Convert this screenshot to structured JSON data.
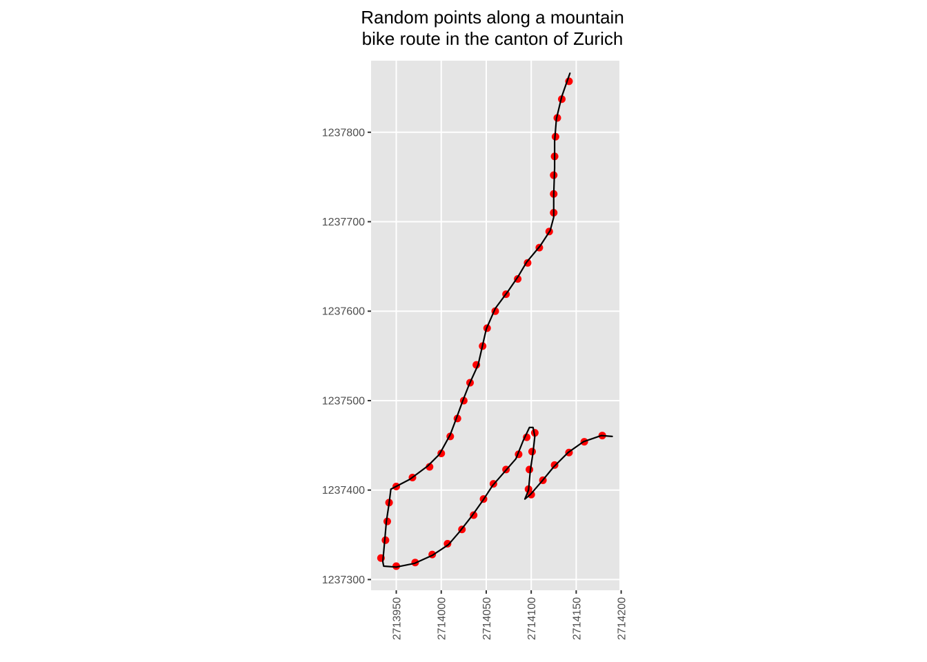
{
  "chart_data": {
    "type": "scatter",
    "title_lines": [
      "Random points along a mountain",
      "bike route in the canton of Zurich"
    ],
    "xlabel": "",
    "ylabel": "",
    "xlim": [
      2713922,
      2714198
    ],
    "ylim": [
      1237288,
      1237880
    ],
    "x_ticks": [
      2713950,
      2714000,
      2714050,
      2714100,
      2714150,
      2714200
    ],
    "x_tick_labels": [
      "2713950",
      "2714000",
      "2714050",
      "2714100",
      "2714150",
      "2714200"
    ],
    "y_ticks": [
      1237300,
      1237400,
      1237500,
      1237600,
      1237700,
      1237800
    ],
    "y_tick_labels": [
      "1237300",
      "1237400",
      "1237500",
      "1237600",
      "1237700",
      "1237800"
    ],
    "grid": true,
    "panel_background": "#e5e5e5",
    "grid_color": "#ffffff",
    "route_color": "#000000",
    "point_color": "#ff0000",
    "route": [
      [
        2714143,
        1237866
      ],
      [
        2714134,
        1237840
      ],
      [
        2714128,
        1237815
      ],
      [
        2714126,
        1237790
      ],
      [
        2714126,
        1237760
      ],
      [
        2714125,
        1237730
      ],
      [
        2714125,
        1237705
      ],
      [
        2714121,
        1237690
      ],
      [
        2714110,
        1237673
      ],
      [
        2714095,
        1237655
      ],
      [
        2714085,
        1237638
      ],
      [
        2714074,
        1237622
      ],
      [
        2714060,
        1237603
      ],
      [
        2714050,
        1237580
      ],
      [
        2714041,
        1237540
      ],
      [
        2714031,
        1237518
      ],
      [
        2714024,
        1237500
      ],
      [
        2714016,
        1237478
      ],
      [
        2714010,
        1237462
      ],
      [
        2713998,
        1237440
      ],
      [
        2713985,
        1237427
      ],
      [
        2713965,
        1237412
      ],
      [
        2713944,
        1237401
      ],
      [
        2713942,
        1237385
      ],
      [
        2713939,
        1237365
      ],
      [
        2713937,
        1237342
      ],
      [
        2713935,
        1237320
      ],
      [
        2713936,
        1237315
      ],
      [
        2713950,
        1237314
      ],
      [
        2713970,
        1237318
      ],
      [
        2713990,
        1237327
      ],
      [
        2714008,
        1237339
      ],
      [
        2714020,
        1237353
      ],
      [
        2714034,
        1237371
      ],
      [
        2714046,
        1237388
      ],
      [
        2714057,
        1237405
      ],
      [
        2714070,
        1237420
      ],
      [
        2714083,
        1237435
      ],
      [
        2714091,
        1237455
      ],
      [
        2714098,
        1237470
      ],
      [
        2714102,
        1237470
      ],
      [
        2714104,
        1237460
      ],
      [
        2714102,
        1237442
      ],
      [
        2714099,
        1237422
      ],
      [
        2714097,
        1237400
      ],
      [
        2714093,
        1237390
      ],
      [
        2714099,
        1237395
      ],
      [
        2714112,
        1237410
      ],
      [
        2714125,
        1237426
      ],
      [
        2714141,
        1237442
      ],
      [
        2714158,
        1237454
      ],
      [
        2714178,
        1237461
      ],
      [
        2714190,
        1237460
      ]
    ],
    "points": [
      [
        2714142,
        1237857
      ],
      [
        2714134,
        1237837
      ],
      [
        2714129,
        1237816
      ],
      [
        2714127,
        1237795
      ],
      [
        2714126,
        1237773
      ],
      [
        2714125,
        1237752
      ],
      [
        2714125,
        1237731
      ],
      [
        2714125,
        1237710
      ],
      [
        2714120,
        1237689
      ],
      [
        2714109,
        1237671
      ],
      [
        2714096,
        1237654
      ],
      [
        2714085,
        1237636
      ],
      [
        2714072,
        1237619
      ],
      [
        2714060,
        1237600
      ],
      [
        2714051,
        1237581
      ],
      [
        2714046,
        1237561
      ],
      [
        2714039,
        1237540
      ],
      [
        2714032,
        1237520
      ],
      [
        2714025,
        1237500
      ],
      [
        2714018,
        1237480
      ],
      [
        2714010,
        1237460
      ],
      [
        2714000,
        1237441
      ],
      [
        2713987,
        1237426
      ],
      [
        2713968,
        1237414
      ],
      [
        2713950,
        1237404
      ],
      [
        2713942,
        1237386
      ],
      [
        2713940,
        1237365
      ],
      [
        2713938,
        1237344
      ],
      [
        2713933,
        1237324
      ],
      [
        2713950,
        1237315
      ],
      [
        2713971,
        1237319
      ],
      [
        2713990,
        1237328
      ],
      [
        2714007,
        1237340
      ],
      [
        2714023,
        1237356
      ],
      [
        2714036,
        1237372
      ],
      [
        2714047,
        1237390
      ],
      [
        2714058,
        1237407
      ],
      [
        2714072,
        1237423
      ],
      [
        2714086,
        1237440
      ],
      [
        2714095,
        1237459
      ],
      [
        2714104,
        1237464
      ],
      [
        2714101,
        1237443
      ],
      [
        2714098,
        1237423
      ],
      [
        2714097,
        1237401
      ],
      [
        2714100,
        1237395
      ],
      [
        2714113,
        1237411
      ],
      [
        2714126,
        1237428
      ],
      [
        2714142,
        1237442
      ],
      [
        2714159,
        1237454
      ],
      [
        2714179,
        1237461
      ]
    ]
  }
}
